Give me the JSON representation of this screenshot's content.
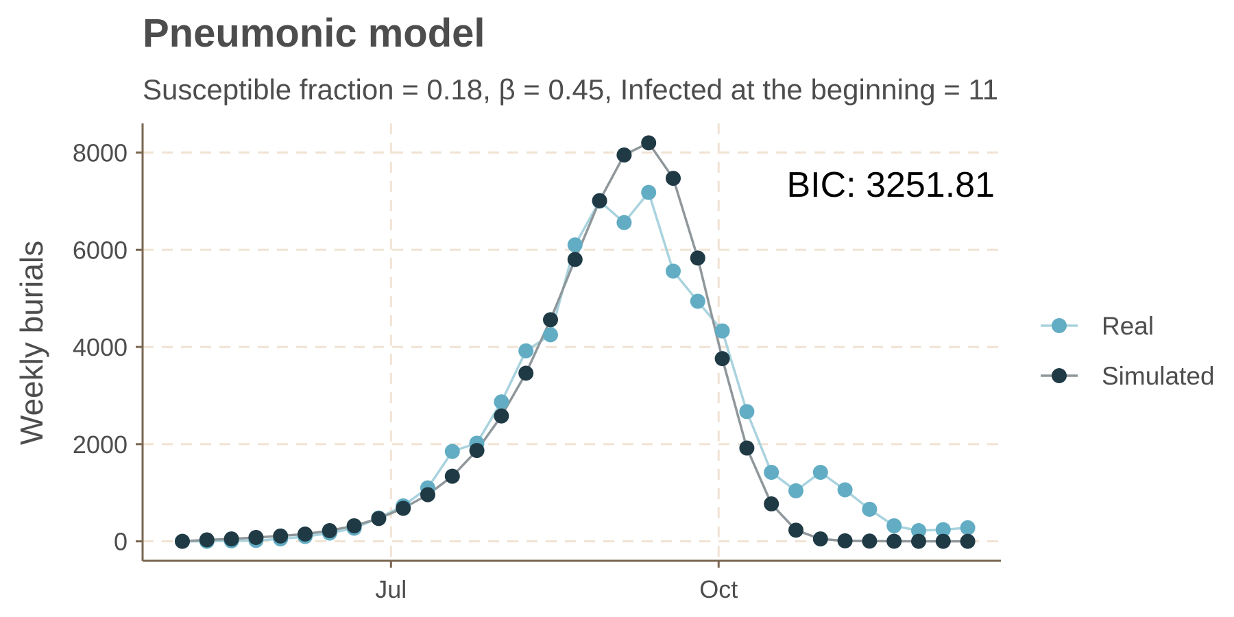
{
  "chart_data": {
    "type": "line",
    "title": "Pneumonic model",
    "subtitle": "Susceptible fraction = 0.18, β = 0.45, Infected at the beginning = 11",
    "xlabel": "",
    "ylabel": "Weekly burials",
    "annotation": "BIC: 3251.81",
    "x_tick_labels": [
      "Jul",
      "Oct"
    ],
    "y_ticks": [
      0,
      2000,
      4000,
      6000,
      8000
    ],
    "ylim": [
      -400,
      8600
    ],
    "grid": true,
    "legend_position": "right",
    "x_unit": "week",
    "series": [
      {
        "name": "Real",
        "color": "#62adc4",
        "values": [
          0,
          0,
          10,
          20,
          50,
          100,
          170,
          270,
          480,
          730,
          1100,
          1850,
          2020,
          2870,
          3920,
          4250,
          6100,
          7000,
          6560,
          7180,
          5560,
          4940,
          4330,
          2670,
          1420,
          1040,
          1420,
          1060,
          660,
          320,
          220,
          240,
          280
        ]
      },
      {
        "name": "Simulated",
        "color": "#1f3a45",
        "values": [
          0,
          30,
          50,
          80,
          110,
          150,
          220,
          320,
          470,
          680,
          960,
          1340,
          1870,
          2580,
          3460,
          4560,
          5800,
          7010,
          7950,
          8200,
          7470,
          5830,
          3760,
          1920,
          770,
          230,
          50,
          10,
          5,
          2,
          1,
          1,
          0
        ]
      }
    ],
    "colors": {
      "grid": "#f1e3d3",
      "axis": "#7a6650",
      "real_line": "#a9d3de",
      "simulated_line": "#8f979b"
    }
  }
}
